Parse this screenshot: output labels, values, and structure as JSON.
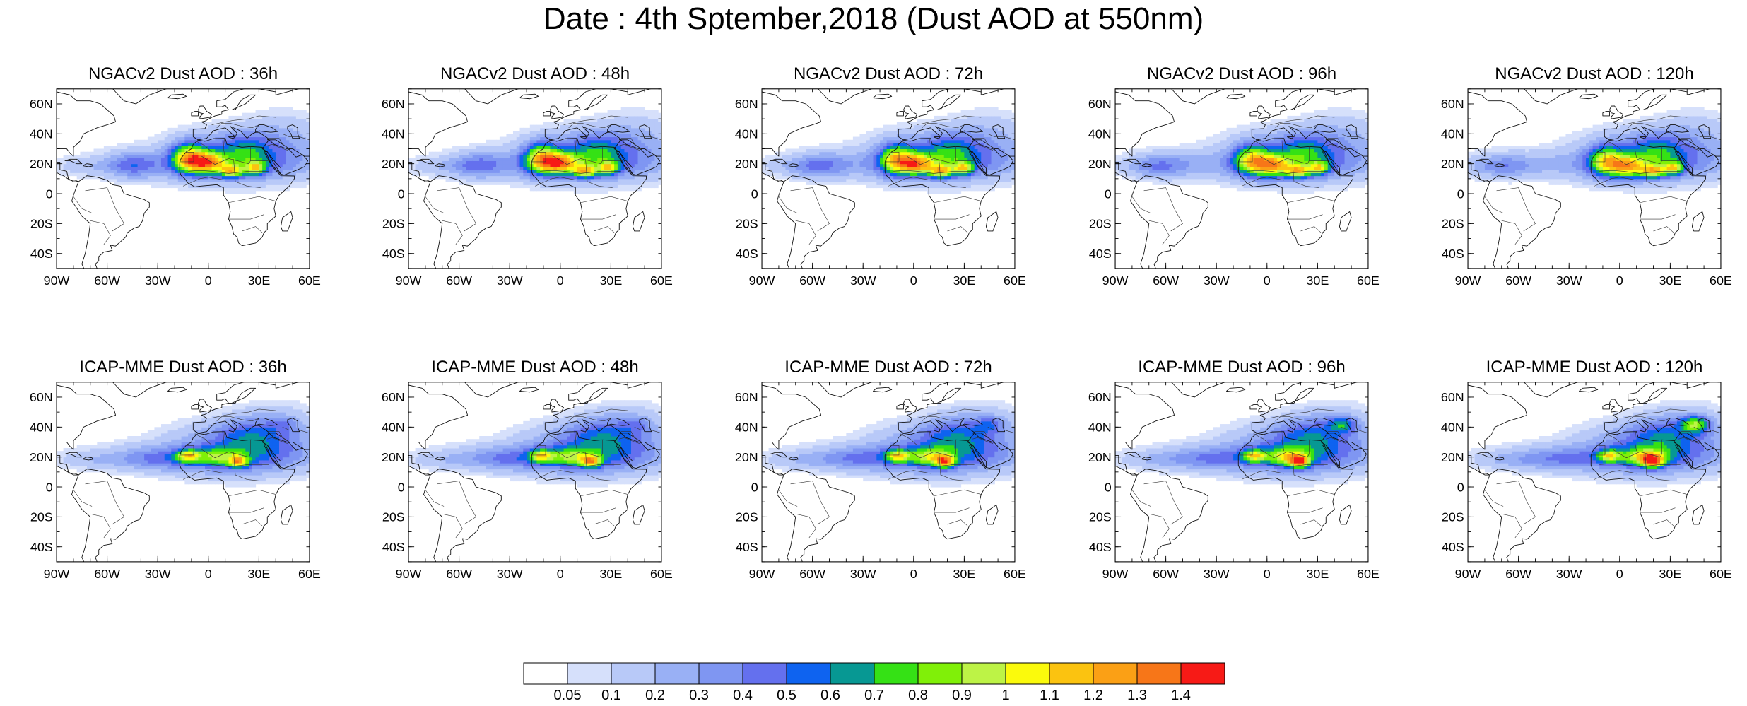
{
  "title": "Date : 4th Sptember,2018 (Dust AOD at 550nm)",
  "panels": [
    {
      "title": "NGACv2 Dust AOD : 36h",
      "model": "ngac",
      "hour": 36
    },
    {
      "title": "NGACv2 Dust AOD : 48h",
      "model": "ngac",
      "hour": 48
    },
    {
      "title": "NGACv2 Dust AOD : 72h",
      "model": "ngac",
      "hour": 72
    },
    {
      "title": "NGACv2 Dust AOD : 96h",
      "model": "ngac",
      "hour": 96
    },
    {
      "title": "NGACv2 Dust AOD : 120h",
      "model": "ngac",
      "hour": 120
    },
    {
      "title": "ICAP-MME Dust AOD : 36h",
      "model": "icap",
      "hour": 36
    },
    {
      "title": "ICAP-MME Dust AOD : 48h",
      "model": "icap",
      "hour": 48
    },
    {
      "title": "ICAP-MME Dust AOD : 72h",
      "model": "icap",
      "hour": 72
    },
    {
      "title": "ICAP-MME Dust AOD : 96h",
      "model": "icap",
      "hour": 96
    },
    {
      "title": "ICAP-MME Dust AOD : 120h",
      "model": "icap",
      "hour": 120
    }
  ],
  "map_extent": {
    "lon": [
      -90,
      60
    ],
    "lat": [
      -50,
      70
    ]
  },
  "lon_ticks": [
    {
      "value": -90,
      "label": "90W"
    },
    {
      "value": -60,
      "label": "60W"
    },
    {
      "value": -30,
      "label": "30W"
    },
    {
      "value": 0,
      "label": "0"
    },
    {
      "value": 30,
      "label": "30E"
    },
    {
      "value": 60,
      "label": "60E"
    }
  ],
  "lat_ticks": [
    {
      "value": 60,
      "label": "60N"
    },
    {
      "value": 40,
      "label": "40N"
    },
    {
      "value": 20,
      "label": "20N"
    },
    {
      "value": 0,
      "label": "0"
    },
    {
      "value": -20,
      "label": "20S"
    },
    {
      "value": -40,
      "label": "40S"
    }
  ],
  "colorbar": {
    "colors": [
      "#ffffff",
      "#d6e0fb",
      "#b8c9f8",
      "#99b0f5",
      "#7f96f2",
      "#6470ee",
      "#0e63f0",
      "#079893",
      "#35e115",
      "#80f008",
      "#bdf346",
      "#fbfa0c",
      "#fbc310",
      "#fba015",
      "#f77618",
      "#f71a16"
    ],
    "labels": [
      "0.05",
      "0.1",
      "0.2",
      "0.3",
      "0.4",
      "0.5",
      "0.6",
      "0.7",
      "0.8",
      "0.9",
      "1",
      "1.1",
      "1.2",
      "1.3",
      "1.4"
    ]
  }
}
